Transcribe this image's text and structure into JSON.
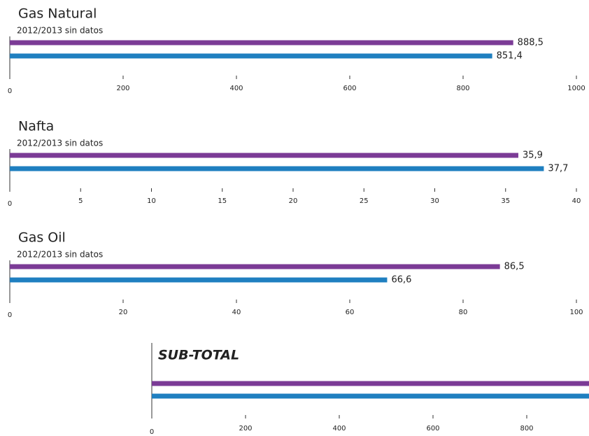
{
  "chart_data": [
    {
      "type": "bar",
      "orientation": "horizontal",
      "title": "Gas Natural",
      "subtitle": "2012/2013 sin datos",
      "values": [
        888.5,
        851.4
      ],
      "value_labels": [
        "888,5",
        "851,4"
      ],
      "colors": [
        "#7b3b96",
        "#1f7fc0"
      ],
      "xlim": [
        0,
        1000
      ],
      "xticks": [
        0,
        200,
        400,
        600,
        800,
        1000
      ]
    },
    {
      "type": "bar",
      "orientation": "horizontal",
      "title": "Nafta",
      "subtitle": "2012/2013 sin datos",
      "values": [
        35.9,
        37.7
      ],
      "value_labels": [
        "35,9",
        "37,7"
      ],
      "colors": [
        "#7b3b96",
        "#1f7fc0"
      ],
      "xlim": [
        0,
        40
      ],
      "xticks": [
        0,
        5,
        10,
        15,
        20,
        25,
        30,
        35,
        40
      ]
    },
    {
      "type": "bar",
      "orientation": "horizontal",
      "title": "Gas Oil",
      "subtitle": "2012/2013 sin datos",
      "values": [
        86.5,
        66.6
      ],
      "value_labels": [
        "86,5",
        "66,6"
      ],
      "colors": [
        "#7b3b96",
        "#1f7fc0"
      ],
      "xlim": [
        0,
        100
      ],
      "xticks": [
        0,
        20,
        40,
        60,
        80,
        100
      ]
    },
    {
      "type": "bar",
      "orientation": "horizontal",
      "title": "SUB-TOTAL",
      "values": [
        1010.9,
        955.7
      ],
      "colors": [
        "#7b3b96",
        "#1f7fc0"
      ],
      "xlim": [
        0,
        1000
      ],
      "xticks": [
        0,
        200,
        400,
        600,
        800
      ]
    }
  ]
}
